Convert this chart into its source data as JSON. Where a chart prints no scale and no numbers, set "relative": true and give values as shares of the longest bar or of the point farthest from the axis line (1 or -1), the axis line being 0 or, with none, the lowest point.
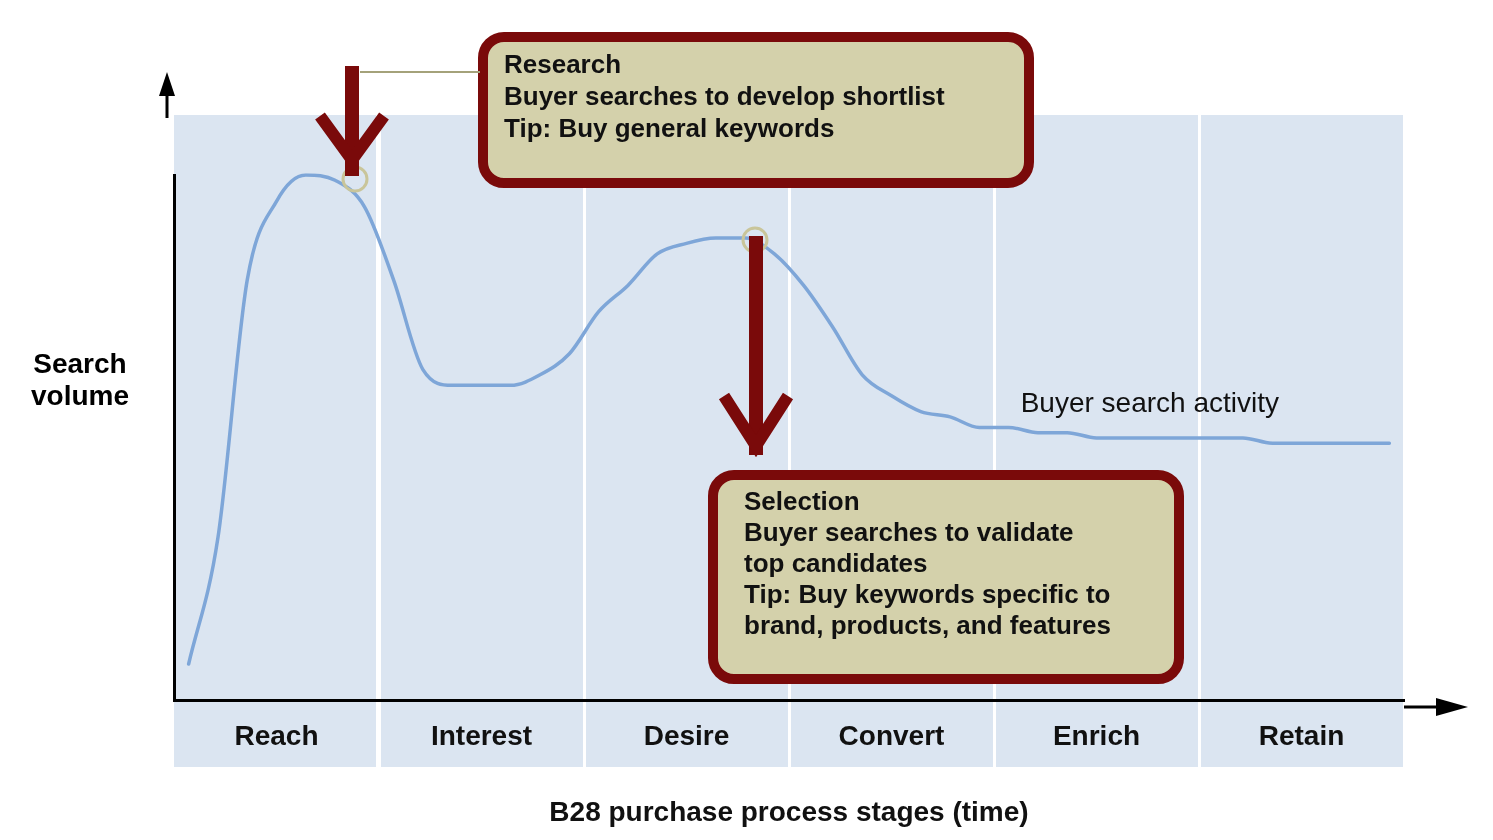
{
  "chart_data": {
    "type": "line",
    "relative": true,
    "xlabel": "B28 purchase process stages (time)",
    "ylabel": "Search volume",
    "categories": [
      null,
      null,
      null,
      "Reach",
      null,
      null,
      null,
      null,
      null,
      null,
      "Interest",
      null,
      null,
      null,
      null,
      null,
      null,
      "Desire",
      null,
      null,
      null,
      null,
      null,
      null,
      "Convert",
      null,
      null,
      null,
      null,
      null,
      null,
      "Enrich",
      null,
      null,
      null,
      null,
      null,
      null,
      "Retain",
      null,
      null,
      null
    ],
    "series": [
      {
        "name": "Buyer search activity",
        "color": "#7ea6d8",
        "values": [
          0.07,
          0.31,
          0.8,
          0.95,
          1,
          0.99,
          0.94,
          0.8,
          0.63,
          0.6,
          0.6,
          0.6,
          0.62,
          0.66,
          0.74,
          0.79,
          0.85,
          0.87,
          0.88,
          0.88,
          0.85,
          0.79,
          0.71,
          0.62,
          0.58,
          0.55,
          0.54,
          0.52,
          0.52,
          0.51,
          0.51,
          0.5,
          0.5,
          0.5,
          0.5,
          0.5,
          0.5,
          0.49,
          0.49,
          0.49,
          0.49,
          0.49
        ]
      }
    ],
    "annotations": [
      "Research\nBuyer searches to develop shortlist\nTip: Buy general keywords",
      "Selection\nBuyer searches to validate\ntop candidates\nTip: Buy keywords specific to\nbrand, products, and features"
    ],
    "grid": false,
    "legend": false,
    "marker": "none"
  }
}
